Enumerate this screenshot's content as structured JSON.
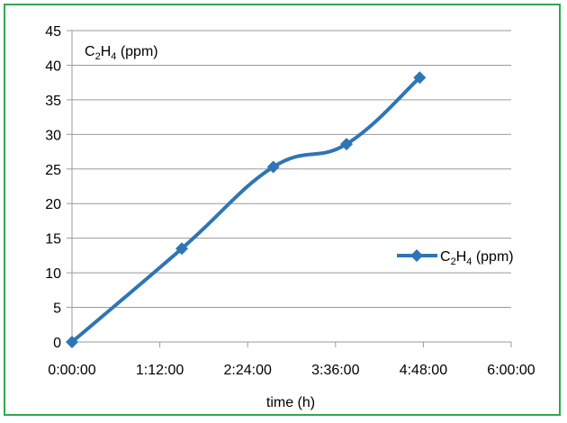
{
  "chart_data": {
    "type": "line",
    "title": "",
    "ylabel_main": "C",
    "ylabel_sub1": "2",
    "ylabel_mid": "H",
    "ylabel_sub2": "4",
    "ylabel_tail": " (ppm)",
    "xlabel": "time (h)",
    "x_tick_labels": [
      "0:00:00",
      "1:12:00",
      "2:24:00",
      "3:36:00",
      "4:48:00",
      "6:00:00"
    ],
    "y_tick_labels": [
      "0",
      "5",
      "10",
      "15",
      "20",
      "25",
      "30",
      "35",
      "40",
      "45"
    ],
    "xlim_minutes": [
      0,
      360
    ],
    "ylim": [
      0,
      45
    ],
    "grid": "horizontal",
    "legend_position": "right",
    "series": [
      {
        "name_main": "C",
        "name_sub1": "2",
        "name_mid": "H",
        "name_sub2": "4",
        "name_tail": " (ppm)",
        "color": "#2e75b6",
        "marker": "diamond",
        "x": [
          "0:00:00",
          "1:30:00",
          "2:45:00",
          "3:45:00",
          "4:45:00"
        ],
        "y": [
          0,
          13.5,
          25.3,
          28.6,
          38.2
        ]
      }
    ]
  }
}
